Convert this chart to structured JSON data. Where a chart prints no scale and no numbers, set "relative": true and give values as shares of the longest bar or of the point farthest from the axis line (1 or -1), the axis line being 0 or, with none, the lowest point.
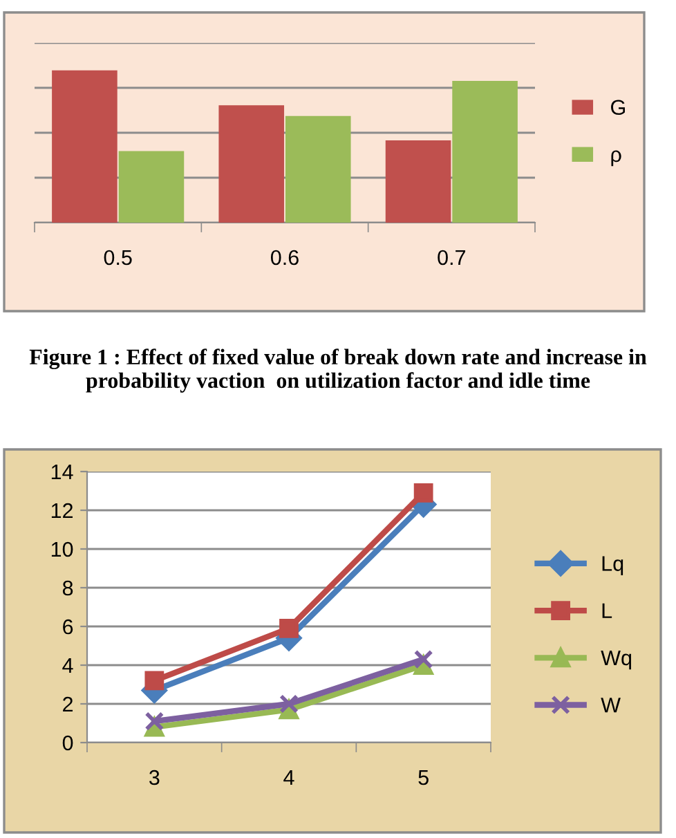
{
  "chart_data": [
    {
      "type": "bar",
      "relative": true,
      "categories": [
        "0.5",
        "0.6",
        "0.7"
      ],
      "grid": "y",
      "legend": "right",
      "series": [
        {
          "name": "G",
          "color": "#c0504d",
          "values": [
            1,
            0.77,
            0.54
          ]
        },
        {
          "name": "ρ",
          "color": "#9bbb59",
          "values": [
            0.47,
            0.7,
            0.93
          ]
        }
      ],
      "annotations": [
        "Figure 1 : Effect of fixed value of break down rate and increase in probability vaction  on utilization factor and idle time"
      ]
    },
    {
      "type": "line",
      "categories": [
        "3",
        "4",
        "5"
      ],
      "ylim": [
        0,
        14
      ],
      "yticks": [
        0,
        2,
        4,
        6,
        8,
        10,
        12,
        14
      ],
      "grid": "y",
      "legend": "right",
      "series": [
        {
          "name": "Lq",
          "color": "#4a7ebb",
          "marker": "diamond",
          "values": [
            2.7,
            5.4,
            12.3
          ]
        },
        {
          "name": "L",
          "color": "#be4b48",
          "marker": "square",
          "values": [
            3.2,
            5.9,
            12.9
          ]
        },
        {
          "name": "Wq",
          "color": "#98b954",
          "marker": "triangle",
          "values": [
            0.8,
            1.7,
            4.0
          ]
        },
        {
          "name": "W",
          "color": "#7d60a0",
          "marker": "cross",
          "values": [
            1.1,
            2.0,
            4.3
          ]
        }
      ]
    }
  ]
}
